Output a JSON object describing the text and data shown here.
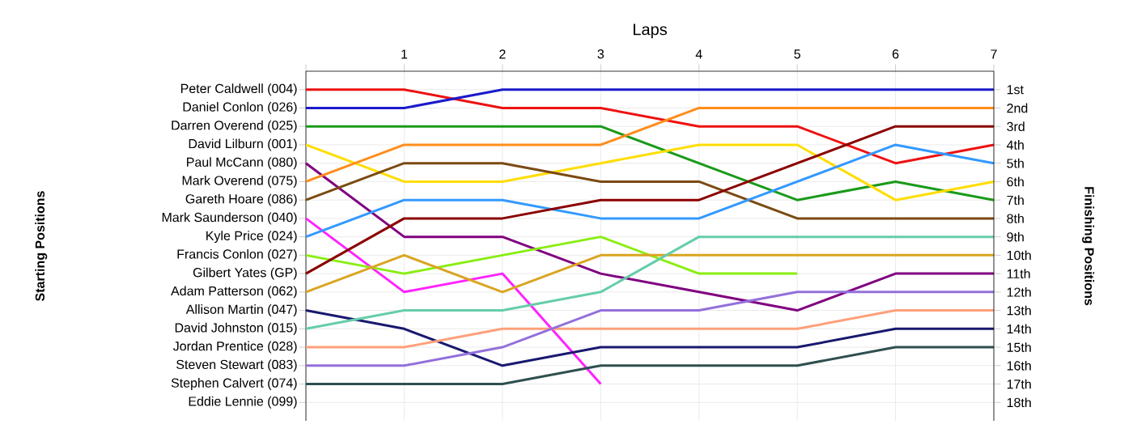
{
  "chart_data": {
    "type": "line",
    "xlabel": "Laps",
    "ylabel": "Finishing Positions",
    "annotations": [
      "Starting Positions",
      "Eddie Lennie (099)"
    ],
    "x": [
      0,
      1,
      2,
      3,
      4,
      5,
      6,
      7
    ],
    "xlim": [
      0,
      7
    ],
    "xticks": [
      {
        "value": 0,
        "label": null
      },
      1,
      2,
      3,
      4,
      5,
      6,
      7
    ],
    "ylim": [
      19,
      0
    ],
    "yticks": [
      {
        "value": 1,
        "label": "1st"
      },
      {
        "value": 2,
        "label": "2nd"
      },
      {
        "value": 3,
        "label": "3rd"
      },
      {
        "value": 4,
        "label": "4th"
      },
      {
        "value": 5,
        "label": "5th"
      },
      {
        "value": 6,
        "label": "6th"
      },
      {
        "value": 7,
        "label": "7th"
      },
      {
        "value": 8,
        "label": "8th"
      },
      {
        "value": 9,
        "label": "9th"
      },
      {
        "value": 10,
        "label": "10th"
      },
      {
        "value": 11,
        "label": "11th"
      },
      {
        "value": 12,
        "label": "12th"
      },
      {
        "value": 13,
        "label": "13th"
      },
      {
        "value": 14,
        "label": "14th"
      },
      {
        "value": 15,
        "label": "15th"
      },
      {
        "value": 16,
        "label": "16th"
      },
      {
        "value": 17,
        "label": "17th"
      },
      {
        "value": 18,
        "label": "18th"
      }
    ],
    "grid": true,
    "line_style": "solid",
    "series": [
      {
        "name": "Peter Caldwell (004)",
        "color": "#ee1111",
        "values": [
          1,
          1,
          2,
          2,
          3,
          3,
          5,
          4
        ]
      },
      {
        "name": "Daniel Conlon (026)",
        "color": "#1a1acc",
        "values": [
          2,
          2,
          1,
          1,
          1,
          1,
          1,
          1
        ]
      },
      {
        "name": "Darren Overend (025)",
        "color": "#1a9a1a",
        "values": [
          3,
          3,
          3,
          3,
          5,
          7,
          6,
          7
        ]
      },
      {
        "name": "David Lilburn (001)",
        "color": "#ffdd00",
        "values": [
          4,
          6,
          6,
          5,
          4,
          4,
          7,
          6
        ]
      },
      {
        "name": "Paul McCann (080)",
        "color": "#800080",
        "values": [
          5,
          9,
          9,
          11,
          12,
          13,
          11,
          11
        ]
      },
      {
        "name": "Mark Overend (075)",
        "color": "#ff8c1a",
        "values": [
          6,
          4,
          4,
          4,
          2,
          2,
          2,
          2
        ]
      },
      {
        "name": "Gareth Hoare (086)",
        "color": "#7b4a12",
        "values": [
          7,
          5,
          5,
          6,
          6,
          8,
          8,
          8
        ]
      },
      {
        "name": "Mark Saunderson (040)",
        "color": "#ff22ff",
        "values": [
          8,
          12,
          11,
          17,
          null,
          null,
          null,
          null
        ]
      },
      {
        "name": "Kyle Price (024)",
        "color": "#3399ff",
        "values": [
          9,
          7,
          7,
          8,
          8,
          6,
          4,
          5
        ]
      },
      {
        "name": "Francis Conlon (027)",
        "color": "#88ee11",
        "values": [
          10,
          11,
          10,
          9,
          11,
          11,
          null,
          null
        ]
      },
      {
        "name": "Gilbert Yates (GP)",
        "color": "#8b0000",
        "values": [
          11,
          8,
          8,
          7,
          7,
          5,
          3,
          3
        ]
      },
      {
        "name": "Adam Patterson (062)",
        "color": "#daa520",
        "values": [
          12,
          10,
          12,
          10,
          10,
          10,
          10,
          10
        ]
      },
      {
        "name": "Allison Martin (047)",
        "color": "#191970",
        "values": [
          13,
          14,
          16,
          15,
          15,
          15,
          14,
          14
        ]
      },
      {
        "name": "David Johnston (015)",
        "color": "#66cdaa",
        "values": [
          14,
          13,
          13,
          12,
          9,
          9,
          9,
          9
        ]
      },
      {
        "name": "Jordan Prentice (028)",
        "color": "#ffa07a",
        "values": [
          15,
          15,
          14,
          14,
          14,
          14,
          13,
          13
        ]
      },
      {
        "name": "Steven Stewart (083)",
        "color": "#9370db",
        "values": [
          16,
          16,
          15,
          13,
          13,
          12,
          12,
          12
        ]
      },
      {
        "name": "Stephen Calvert (074)",
        "color": "#2f4f4f",
        "values": [
          17,
          17,
          17,
          16,
          16,
          16,
          15,
          15
        ]
      }
    ]
  }
}
